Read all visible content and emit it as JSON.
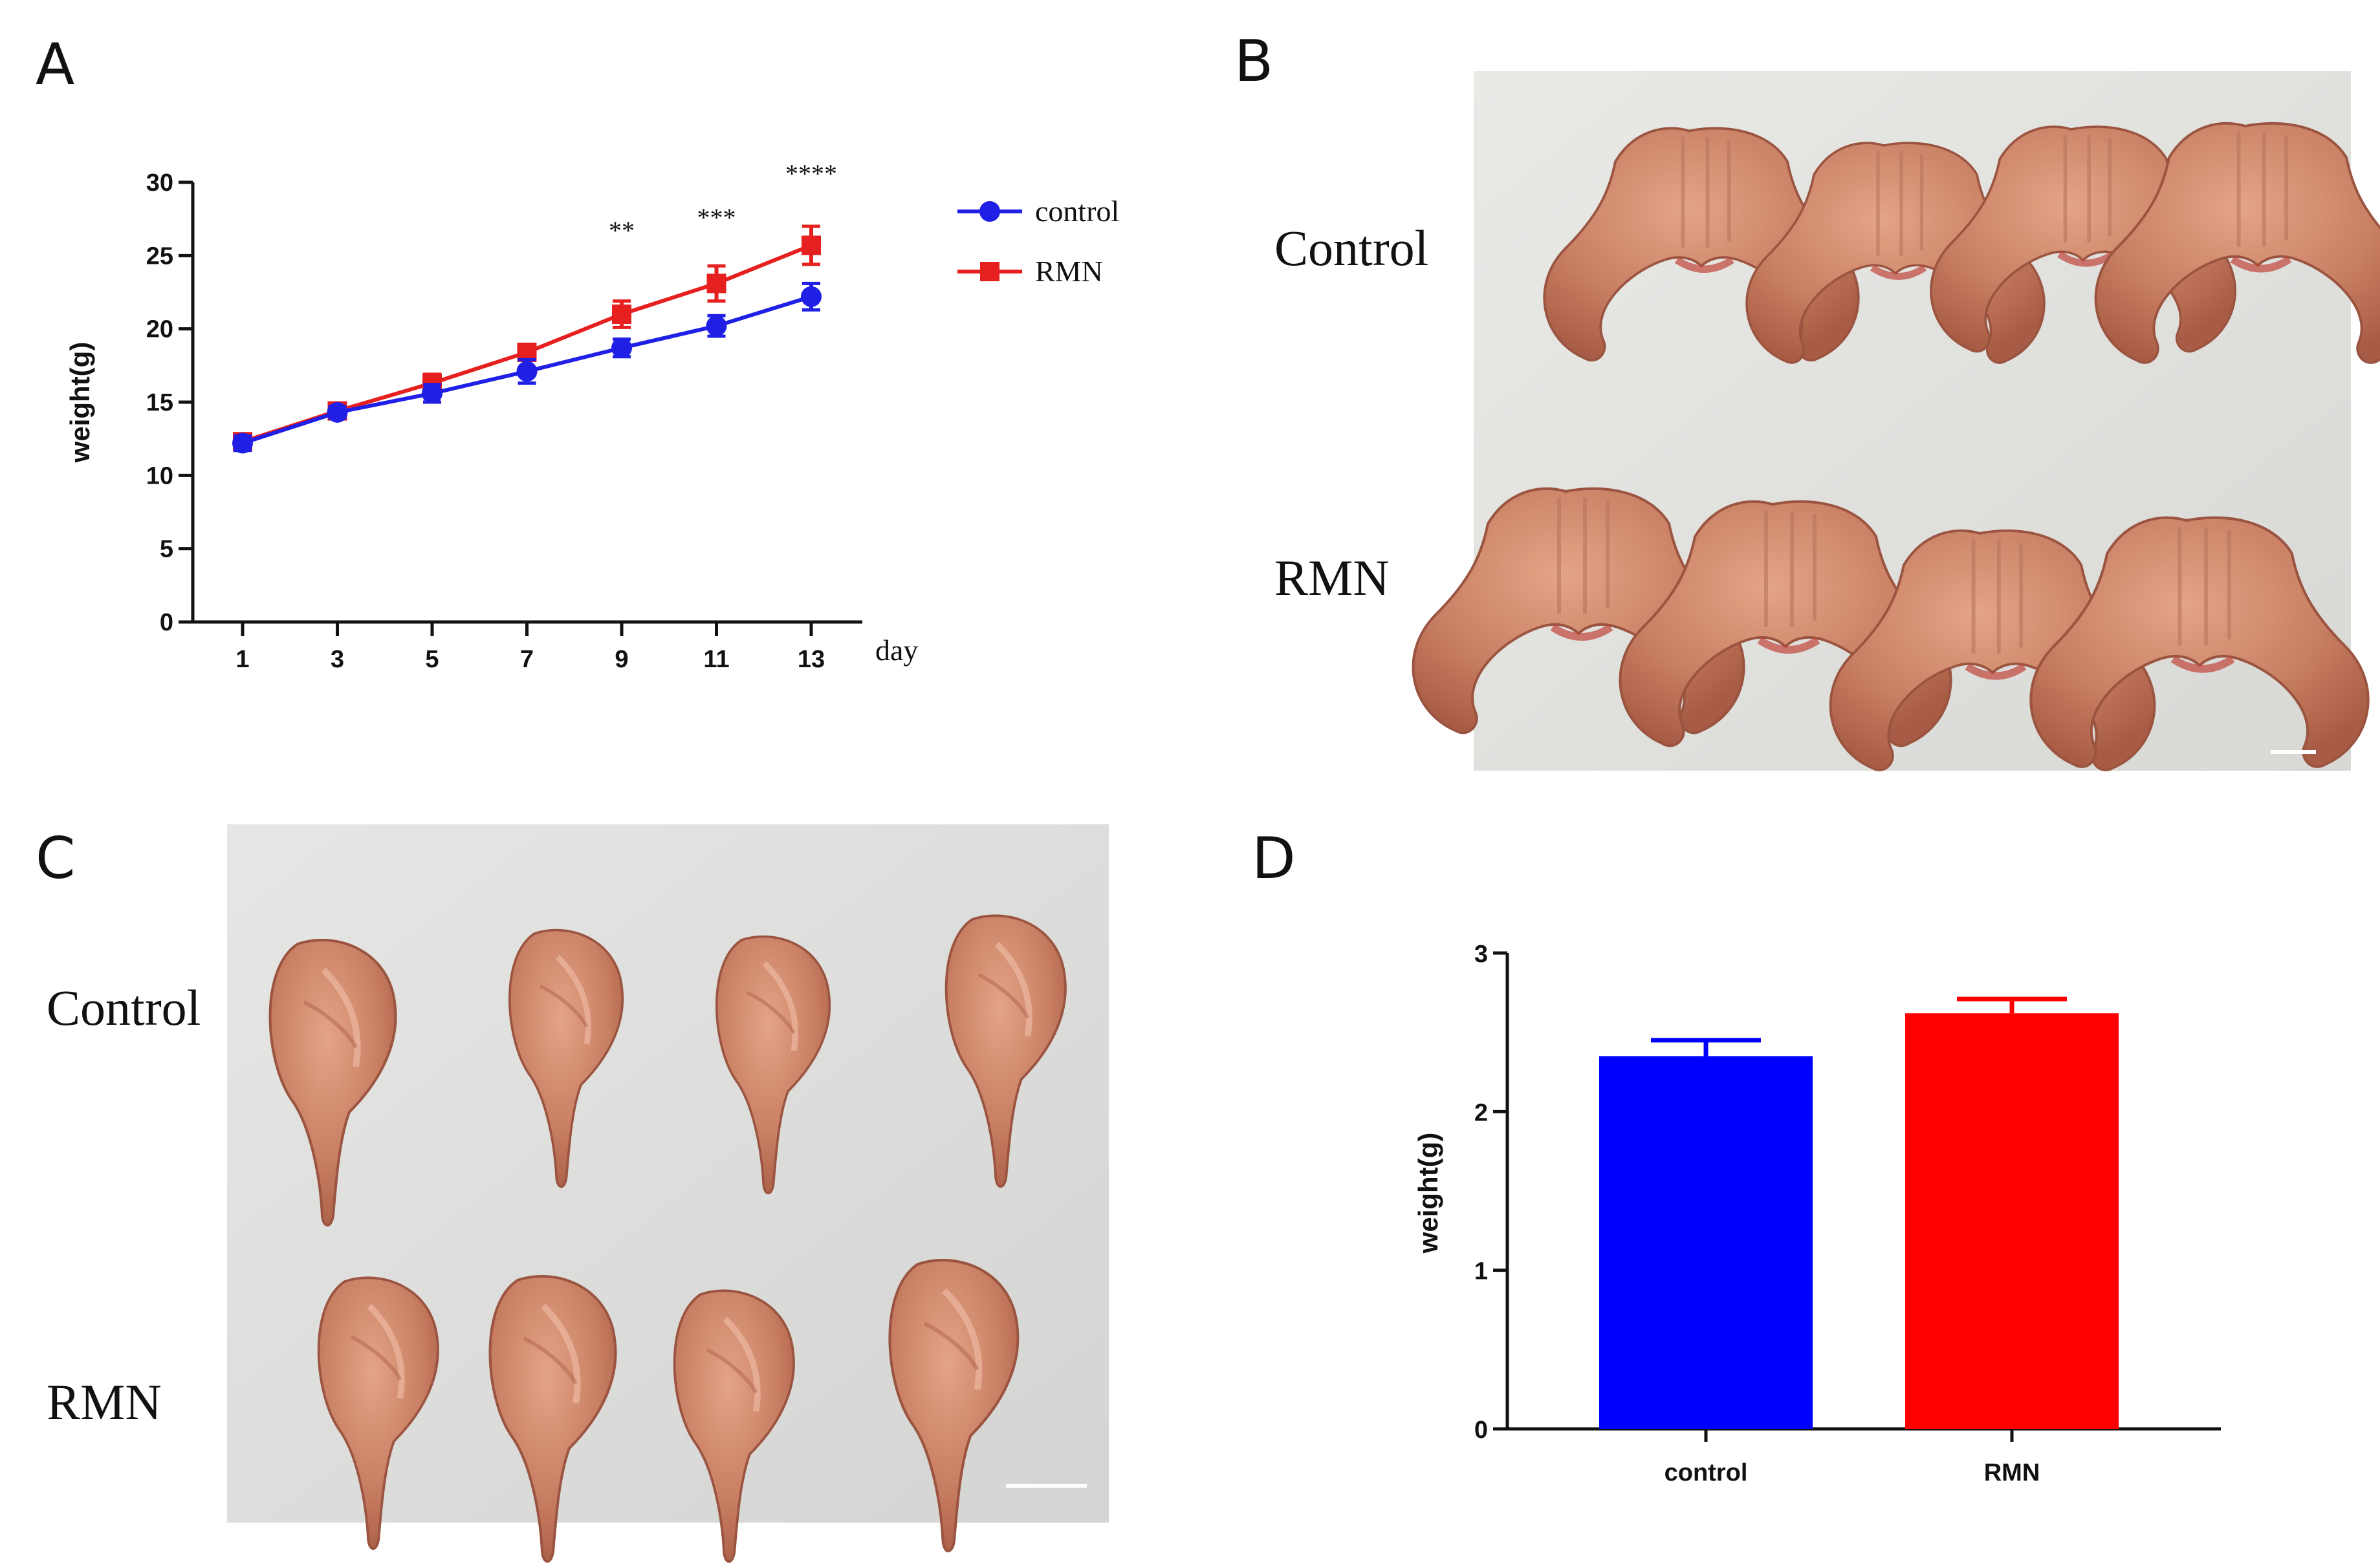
{
  "panels": {
    "a": {
      "letter": "A"
    },
    "b": {
      "letter": "B",
      "row_labels": [
        "Control",
        "RMN"
      ]
    },
    "c": {
      "letter": "C",
      "row_labels": [
        "Control",
        "RMN"
      ]
    },
    "d": {
      "letter": "D"
    }
  },
  "chart_data": [
    {
      "panel": "A",
      "type": "line",
      "title": "",
      "xlabel": "day",
      "ylabel": "weight(g)",
      "x": [
        1,
        3,
        5,
        7,
        9,
        11,
        13
      ],
      "ylim": [
        0,
        30
      ],
      "yticks": [
        0,
        5,
        10,
        15,
        20,
        25,
        30
      ],
      "series": [
        {
          "name": "control",
          "color": "#1f1fe6",
          "marker": "circle",
          "values": [
            12.2,
            14.3,
            15.6,
            17.1,
            18.7,
            20.2,
            22.2
          ],
          "errors": [
            0.5,
            0.4,
            0.6,
            0.8,
            0.6,
            0.7,
            0.9
          ]
        },
        {
          "name": "RMN",
          "color": "#e61f1f",
          "marker": "square",
          "values": [
            12.3,
            14.4,
            16.3,
            18.4,
            21.0,
            23.1,
            25.7
          ],
          "errors": [
            0.5,
            0.5,
            0.6,
            0.5,
            0.9,
            1.2,
            1.3
          ]
        }
      ],
      "annotations": [
        {
          "x": 9,
          "text": "**"
        },
        {
          "x": 11,
          "text": "***"
        },
        {
          "x": 13,
          "text": "****"
        }
      ],
      "legend": "top-right"
    },
    {
      "panel": "D",
      "type": "bar",
      "title": "",
      "xlabel": "",
      "ylabel": "weight(g)",
      "categories": [
        "control",
        "RMN"
      ],
      "values": [
        2.35,
        2.62
      ],
      "errors": [
        0.1,
        0.09
      ],
      "colors": [
        "#0000ff",
        "#ff0000"
      ],
      "ylim": [
        0,
        3
      ],
      "yticks": [
        0,
        1,
        2,
        3
      ]
    }
  ]
}
